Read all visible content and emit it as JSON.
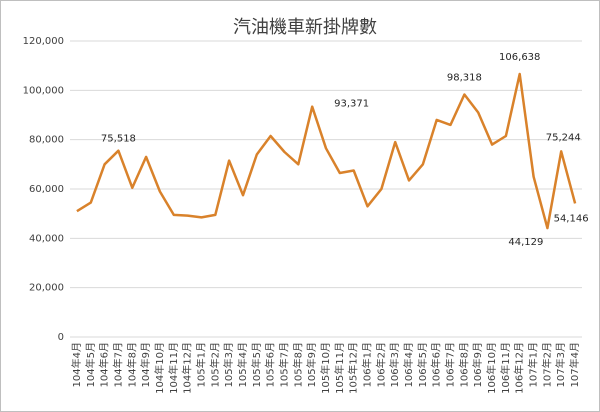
{
  "chart_data": {
    "type": "line",
    "title": "汽油機車新掛牌數",
    "categories": [
      "104年4月",
      "104年5月",
      "104年6月",
      "104年7月",
      "104年8月",
      "104年9月",
      "104年10月",
      "104年11月",
      "104年12月",
      "105年1月",
      "105年2月",
      "105年3月",
      "105年4月",
      "105年5月",
      "105年6月",
      "105年7月",
      "105年8月",
      "105年9月",
      "105年10月",
      "105年11月",
      "105年12月",
      "106年1月",
      "106年2月",
      "106年3月",
      "106年4月",
      "106年5月",
      "106年6月",
      "106年7月",
      "106年8月",
      "106年9月",
      "106年10月",
      "106年11月",
      "106年12月",
      "107年1月",
      "107年2月",
      "107年3月",
      "107年4月"
    ],
    "values": [
      51000,
      54500,
      70000,
      75518,
      60500,
      73000,
      59000,
      49500,
      49200,
      48500,
      49500,
      71500,
      57500,
      74000,
      81500,
      75000,
      70000,
      93371,
      76500,
      66500,
      67500,
      53000,
      60000,
      79000,
      63500,
      70000,
      88000,
      86000,
      98318,
      91000,
      78000,
      81500,
      106638,
      65000,
      44129,
      75244,
      54146
    ],
    "value_labels": [
      null,
      null,
      null,
      "75,518",
      null,
      null,
      null,
      null,
      null,
      null,
      null,
      null,
      null,
      null,
      null,
      null,
      null,
      "93,371",
      null,
      null,
      null,
      null,
      null,
      null,
      null,
      null,
      null,
      null,
      "98,318",
      null,
      null,
      null,
      "106,638",
      null,
      "44,129",
      "75,244",
      "54,146"
    ],
    "color": "#d9822b",
    "ylim": [
      0,
      120000
    ],
    "yticks": [
      {
        "value": 0,
        "label": "0"
      },
      {
        "value": 20000,
        "label": "20,000"
      },
      {
        "value": 40000,
        "label": "40,000"
      },
      {
        "value": 60000,
        "label": "60,000"
      },
      {
        "value": 80000,
        "label": "80,000"
      },
      {
        "value": 100000,
        "label": "100,000"
      },
      {
        "value": 120000,
        "label": "120,000"
      }
    ],
    "grid": true
  }
}
